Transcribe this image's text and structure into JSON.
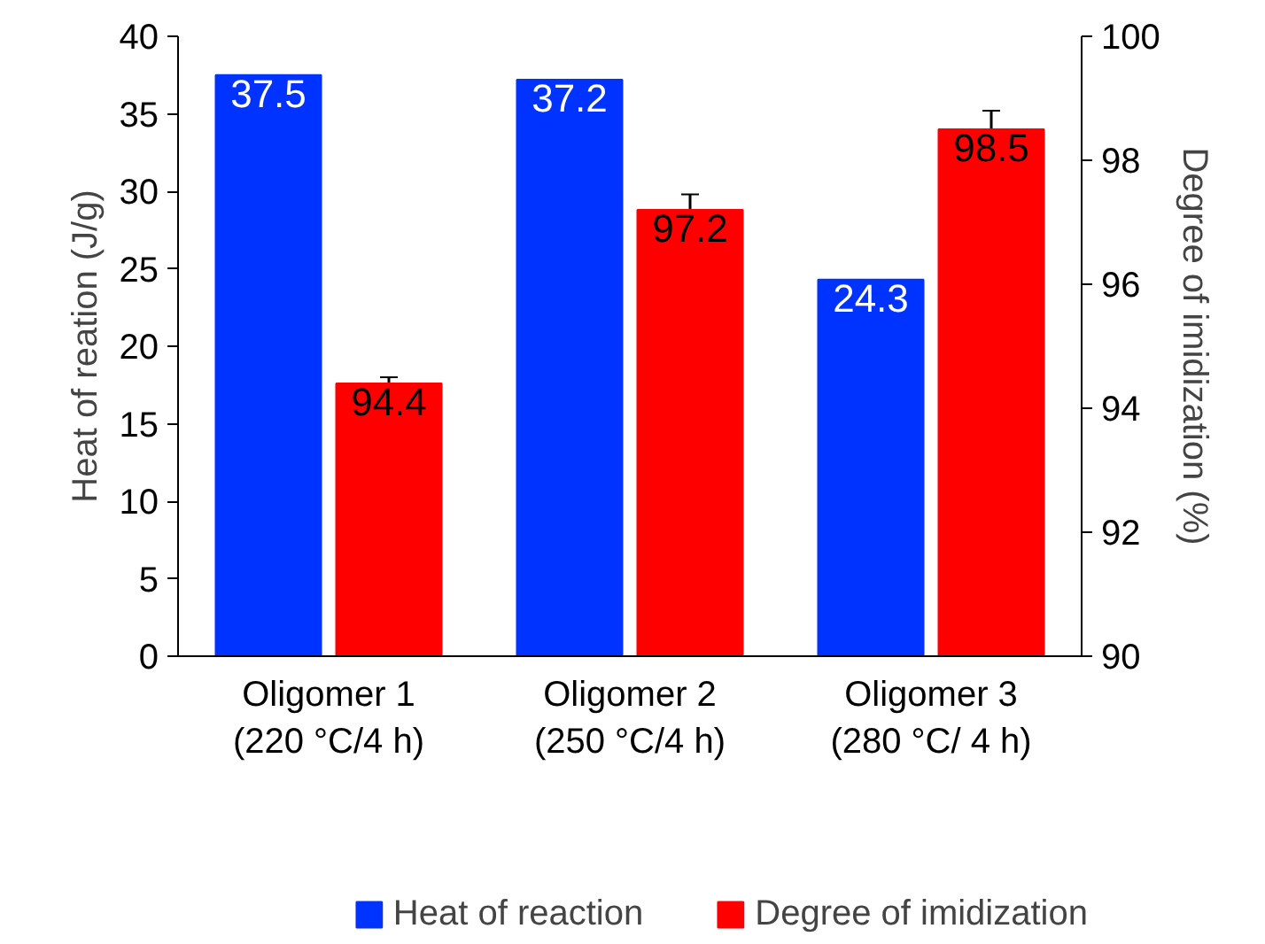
{
  "chart_data": {
    "type": "bar",
    "categories": [
      "Oligomer 1\n(220 °C/4 h)",
      "Oligomer 2\n(250 °C/4 h)",
      "Oligomer 3\n(280 °C/ 4 h)"
    ],
    "ylabel": "Heat of reation (J/g)",
    "y2label": "Degree of imidization (%)",
    "ylim": [
      0,
      40
    ],
    "yticks": [
      0,
      5,
      10,
      15,
      20,
      25,
      30,
      35,
      40
    ],
    "y2lim": [
      90,
      100
    ],
    "y2ticks": [
      90,
      92,
      94,
      96,
      98,
      100
    ],
    "series": [
      {
        "name": "Heat of reaction",
        "color": "#0033ff",
        "values": [
          37.5,
          37.2,
          24.3
        ]
      },
      {
        "name": "Degree of imidization",
        "color": "#ff0000",
        "values": [
          94.4,
          97.2,
          98.5
        ],
        "axis": "y2",
        "errors": [
          0.1,
          0.25,
          0.3
        ]
      }
    ],
    "data_labels": true,
    "legend": "bottom",
    "grid": false
  }
}
